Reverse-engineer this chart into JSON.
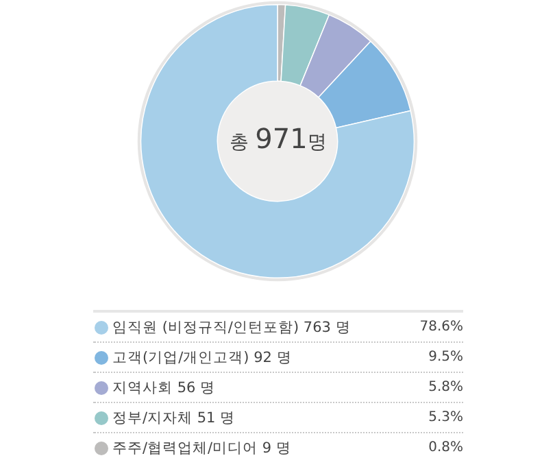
{
  "chart_data": {
    "type": "donut",
    "title": "총 971명",
    "categories": [
      "임직원 (비정규직/인턴포함)",
      "고객(기업/개인고객)",
      "지역사회",
      "정부/지자체",
      "주주/협력업체/미디어"
    ],
    "values": [
      763,
      92,
      56,
      51,
      9
    ],
    "value_labels": [
      "763 명",
      "92 명",
      "56 명",
      "51 명",
      "9 명"
    ],
    "annotations": [
      "78.6%",
      "9.5%",
      "5.8%",
      "5.3%",
      "0.8%"
    ],
    "colors": [
      "#a6cfe9",
      "#80b6e0",
      "#a4abd3",
      "#96c8c9",
      "#bdbcbb"
    ],
    "legend": "bottom"
  }
}
